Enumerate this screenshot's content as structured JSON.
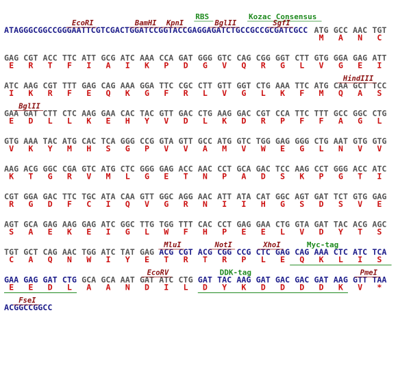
{
  "sequence_rows": [
    {
      "dna": "ATAGGGCGGCCGGGAATTCGTCGACTGGATCCGGTACCGAGGAGATCTGCCGCCGCGATCGCC",
      "codons": [
        "ATG",
        "GCC",
        "AAC",
        "TGT"
      ],
      "amino_acids": [
        "M",
        "A",
        "N",
        "C"
      ],
      "labels": [
        "RBS",
        "Kozac Consensus",
        "EcoRI",
        "BamHI",
        "KpnI",
        "BglII",
        "SgfI"
      ]
    },
    {
      "codons": [
        "GAG",
        "CGT",
        "ACC",
        "TTC",
        "ATT",
        "GCG",
        "ATC",
        "AAA",
        "CCA",
        "GAT",
        "GGG",
        "GTC",
        "CAG",
        "CGG",
        "GGT",
        "CTT",
        "GTG",
        "GGA",
        "GAG",
        "ATT"
      ],
      "amino_acids": [
        "E",
        "R",
        "T",
        "F",
        "I",
        "A",
        "I",
        "K",
        "P",
        "D",
        "G",
        "V",
        "Q",
        "R",
        "G",
        "L",
        "V",
        "G",
        "E",
        "I"
      ]
    },
    {
      "codons": [
        "ATC",
        "AAG",
        "CGT",
        "TTT",
        "GAG",
        "CAG",
        "AAA",
        "GGA",
        "TTC",
        "CGC",
        "CTT",
        "GTT",
        "GGT",
        "CTG",
        "AAA",
        "TTC",
        "ATG",
        "CAA",
        "GCT",
        "TCC"
      ],
      "amino_acids": [
        "I",
        "K",
        "R",
        "F",
        "E",
        "Q",
        "K",
        "G",
        "F",
        "R",
        "L",
        "V",
        "G",
        "L",
        "K",
        "F",
        "M",
        "Q",
        "A",
        "S"
      ],
      "labels": [
        "HindIII"
      ]
    },
    {
      "codons": [
        "GAA",
        "GAT",
        "CTT",
        "CTC",
        "AAG",
        "GAA",
        "CAC",
        "TAC",
        "GTT",
        "GAC",
        "CTG",
        "AAG",
        "GAC",
        "CGT",
        "CCA",
        "TTC",
        "TTT",
        "GCC",
        "GGC",
        "CTG"
      ],
      "amino_acids": [
        "E",
        "D",
        "L",
        "L",
        "K",
        "E",
        "H",
        "Y",
        "V",
        "D",
        "L",
        "K",
        "D",
        "R",
        "P",
        "F",
        "F",
        "A",
        "G",
        "L"
      ],
      "labels": [
        "BglII"
      ]
    },
    {
      "codons": [
        "GTG",
        "AAA",
        "TAC",
        "ATG",
        "CAC",
        "TCA",
        "GGG",
        "CCG",
        "GTA",
        "GTT",
        "GCC",
        "ATG",
        "GTC",
        "TGG",
        "GAG",
        "GGG",
        "CTG",
        "AAT",
        "GTG",
        "GTG"
      ],
      "amino_acids": [
        "V",
        "K",
        "Y",
        "M",
        "H",
        "S",
        "G",
        "P",
        "V",
        "V",
        "A",
        "M",
        "V",
        "W",
        "E",
        "G",
        "L",
        "N",
        "V",
        "V"
      ]
    },
    {
      "codons": [
        "AAG",
        "ACG",
        "GGC",
        "CGA",
        "GTC",
        "ATG",
        "CTC",
        "GGG",
        "GAG",
        "ACC",
        "AAC",
        "CCT",
        "GCA",
        "GAC",
        "TCC",
        "AAG",
        "CCT",
        "GGG",
        "ACC",
        "ATC"
      ],
      "amino_acids": [
        "K",
        "T",
        "G",
        "R",
        "V",
        "M",
        "L",
        "G",
        "E",
        "T",
        "N",
        "P",
        "A",
        "D",
        "S",
        "K",
        "P",
        "G",
        "T",
        "I"
      ]
    },
    {
      "codons": [
        "CGT",
        "GGA",
        "GAC",
        "TTC",
        "TGC",
        "ATA",
        "CAA",
        "GTT",
        "GGC",
        "AGG",
        "AAC",
        "ATT",
        "ATA",
        "CAT",
        "GGC",
        "AGT",
        "GAT",
        "TCT",
        "GTG",
        "GAG"
      ],
      "amino_acids": [
        "R",
        "G",
        "D",
        "F",
        "C",
        "I",
        "Q",
        "V",
        "G",
        "R",
        "N",
        "I",
        "I",
        "H",
        "G",
        "S",
        "D",
        "S",
        "V",
        "E"
      ]
    },
    {
      "codons": [
        "AGT",
        "GCA",
        "GAG",
        "AAG",
        "GAG",
        "ATC",
        "GGC",
        "TTG",
        "TGG",
        "TTT",
        "CAC",
        "CCT",
        "GAG",
        "GAA",
        "CTG",
        "GTA",
        "GAT",
        "TAC",
        "ACG",
        "AGC"
      ],
      "amino_acids": [
        "S",
        "A",
        "E",
        "K",
        "E",
        "I",
        "G",
        "L",
        "W",
        "F",
        "H",
        "P",
        "E",
        "E",
        "L",
        "V",
        "D",
        "Y",
        "T",
        "S"
      ]
    },
    {
      "codons": [
        "TGT",
        "GCT",
        "CAG",
        "AAC",
        "TGG",
        "ATC",
        "TAT",
        "GAG",
        "ACG",
        "CGT",
        "ACG",
        "CGG",
        "CCG",
        "CTC",
        "GAG",
        "CAG",
        "AAA",
        "CTC",
        "ATC",
        "TCA"
      ],
      "amino_acids": [
        "C",
        "A",
        "Q",
        "N",
        "W",
        "I",
        "Y",
        "E",
        "T",
        "R",
        "T",
        "R",
        "P",
        "L",
        "E",
        "Q",
        "K",
        "L",
        "I",
        "S"
      ],
      "labels": [
        "MluI",
        "NotI",
        "XhoI",
        "Myc-tag"
      ]
    },
    {
      "codons": [
        "GAA",
        "GAG",
        "GAT",
        "CTG",
        "GCA",
        "GCA",
        "AAT",
        "GAT",
        "ATC",
        "CTG",
        "GAT",
        "TAC",
        "AAG",
        "GAT",
        "GAC",
        "GAC",
        "GAT",
        "AAG",
        "GTT",
        "TAA"
      ],
      "amino_acids": [
        "E",
        "E",
        "D",
        "L",
        "A",
        "A",
        "N",
        "D",
        "I",
        "L",
        "D",
        "Y",
        "K",
        "D",
        "D",
        "D",
        "D",
        "K",
        "V",
        "*"
      ],
      "labels": [
        "EcoRV",
        "DDK-tag",
        "PmeI"
      ]
    },
    {
      "dna": "ACGGCCGGCC",
      "labels": [
        "FseI"
      ]
    }
  ]
}
